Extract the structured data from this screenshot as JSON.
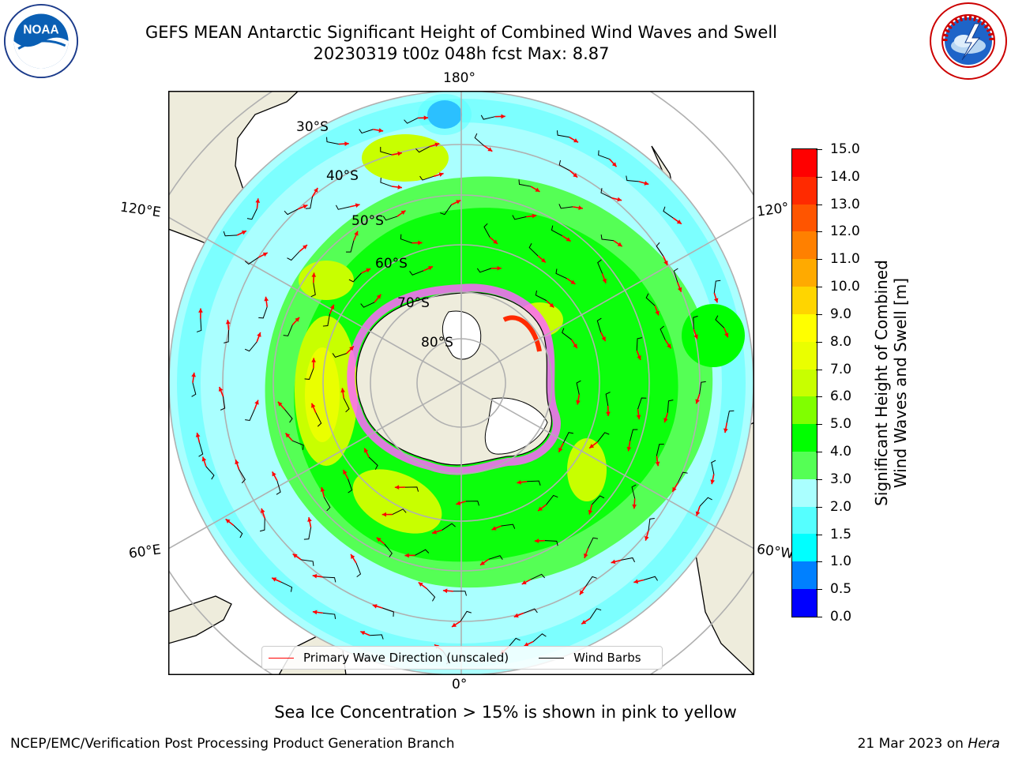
{
  "header": {
    "title_line1": "GEFS MEAN Antarctic Significant Height of Combined Wind Waves and Swell",
    "title_line2": "20230319 t00z 048h fcst   Max: 8.87"
  },
  "map": {
    "projection": "south polar stereographic",
    "longitude_labels": {
      "top": "180°",
      "bottom": "0°",
      "upper_left": "120°E",
      "upper_right": "120°",
      "lower_left": "60°E",
      "lower_right": "60°W"
    },
    "latitude_labels": [
      "30°S",
      "40°S",
      "50°S",
      "60°S",
      "70°S",
      "80°S"
    ],
    "legend": {
      "wave_direction": "Primary Wave Direction (unscaled)",
      "wind_barbs": "Wind Barbs",
      "wave_color": "#ff0000",
      "barb_color": "#000000"
    }
  },
  "colorbar": {
    "title_line1": "Significant Height of Combined",
    "title_line2": "Wind Waves and Swell [m]",
    "ticks": [
      "15.0",
      "14.0",
      "13.0",
      "12.0",
      "11.0",
      "10.0",
      "9.0",
      "8.0",
      "7.0",
      "6.0",
      "5.0",
      "4.0",
      "3.0",
      "2.0",
      "1.5",
      "1.0",
      "0.5",
      "0.0"
    ],
    "colors_top_to_bottom": [
      "#ff0000",
      "#ff2a00",
      "#ff5500",
      "#ff8000",
      "#ffaa00",
      "#ffd500",
      "#ffff00",
      "#eaff00",
      "#c8ff00",
      "#80ff00",
      "#00ff00",
      "#55ff55",
      "#aaffff",
      "#55ffff",
      "#00ffff",
      "#0080ff",
      "#0000ff"
    ]
  },
  "caption": "Sea Ice Concentration > 15% is shown in pink to yellow",
  "footer": {
    "left": "NCEP/EMC/Verification Post Processing Product Generation Branch",
    "right_prefix": "21 Mar 2023 on ",
    "right_machine": "Hera"
  },
  "logos": {
    "noaa_text": "NOAA",
    "nws_text": "NATIONAL WEATHER SERVICE"
  }
}
